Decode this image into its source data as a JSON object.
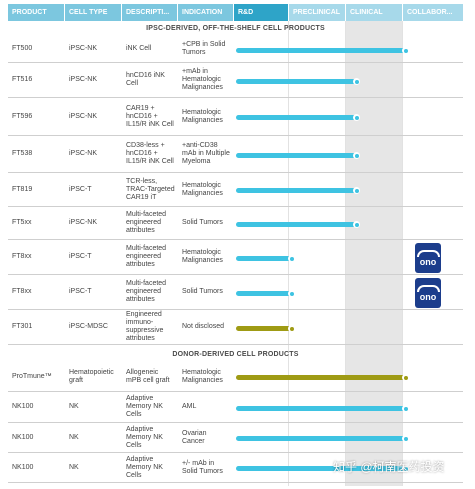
{
  "columns": [
    "PRODUCT",
    "CELL TYPE",
    "DESCRIPTI...",
    "INDICATION",
    "R&D",
    "PRECLINICAL",
    "CLINICAL",
    "COLLABOR..."
  ],
  "sections": {
    "ipsc": "IPSC-DERIVED, OFF-THE-SHELF CELL PRODUCTS",
    "donor": "DONOR-DERIVED CELL PRODUCTS"
  },
  "stages": [
    "R&D",
    "PRECLINICAL",
    "CLINICAL"
  ],
  "partner_logo_text": "ono",
  "rows": [
    {
      "product": "FT500",
      "cell_type": "iPSC-NK",
      "description": "iNK Cell",
      "indication": "+CPB in Solid Tumors",
      "bar_color": "#3ec3e2",
      "progress": 0.67,
      "partner": ""
    },
    {
      "product": "FT516",
      "cell_type": "iPSC-NK",
      "description": "hnCD16 iNK Cell",
      "indication": "+mAb in Hematologic Malignancies",
      "bar_color": "#3ec3e2",
      "progress": 0.48,
      "partner": ""
    },
    {
      "product": "FT596",
      "cell_type": "iPSC-NK",
      "description": "CAR19 + hnCD16 + IL15/R iNK Cell",
      "indication": "Hematologic Malignancies",
      "bar_color": "#3ec3e2",
      "progress": 0.48,
      "partner": ""
    },
    {
      "product": "FT538",
      "cell_type": "iPSC-NK",
      "description": "CD38-less + hnCD16 + IL15/R iNK Cell",
      "indication": "+anti-CD38 mAb in Multiple Myeloma",
      "bar_color": "#3ec3e2",
      "progress": 0.48,
      "partner": ""
    },
    {
      "product": "FT819",
      "cell_type": "iPSC-T",
      "description": "TCR-less, TRAC-Targeted CAR19 iT",
      "indication": "Hematologic Malignancies",
      "bar_color": "#3ec3e2",
      "progress": 0.48,
      "partner": ""
    },
    {
      "product": "FT5xx",
      "cell_type": "iPSC-NK",
      "description": "Multi-faceted engineered attributes",
      "indication": "Solid Tumors",
      "bar_color": "#3ec3e2",
      "progress": 0.48,
      "partner": ""
    },
    {
      "product": "FT8xx",
      "cell_type": "iPSC-T",
      "description": "Multi-faceted engineered attributes",
      "indication": "Hematologic Malignancies",
      "bar_color": "#3ec3e2",
      "progress": 0.22,
      "partner": "ono"
    },
    {
      "product": "FT8xx",
      "cell_type": "iPSC-T",
      "description": "Multi-faceted engineered attributes",
      "indication": "Solid Tumors",
      "bar_color": "#3ec3e2",
      "progress": 0.22,
      "partner": "ono"
    },
    {
      "product": "FT301",
      "cell_type": "iPSC-MDSC",
      "description": "Engineered immuno-suppressive attributes",
      "indication": "Not disclosed",
      "bar_color": "#9f9b14",
      "progress": 0.22,
      "partner": ""
    },
    {
      "product": "ProTmune™",
      "cell_type": "Hematopoietic graft",
      "description": "Allogeneic mPB cell graft",
      "indication": "Hematologic Malignancies",
      "bar_color": "#9f9b14",
      "progress": 0.67,
      "partner": ""
    },
    {
      "product": "NK100",
      "cell_type": "NK",
      "description": "Adaptive Memory NK Cells",
      "indication": "AML",
      "bar_color": "#3ec3e2",
      "progress": 0.67,
      "partner": ""
    },
    {
      "product": "NK100",
      "cell_type": "NK",
      "description": "Adaptive Memory NK Cells",
      "indication": "Ovarian Cancer",
      "bar_color": "#3ec3e2",
      "progress": 0.67,
      "partner": ""
    },
    {
      "product": "NK100",
      "cell_type": "NK",
      "description": "Adaptive Memory NK Cells",
      "indication": "+/- mAb in Solid Tumors",
      "bar_color": "#3ec3e2",
      "progress": 0.67,
      "partner": ""
    }
  ],
  "watermark": "知乎 @柯南医药投资"
}
